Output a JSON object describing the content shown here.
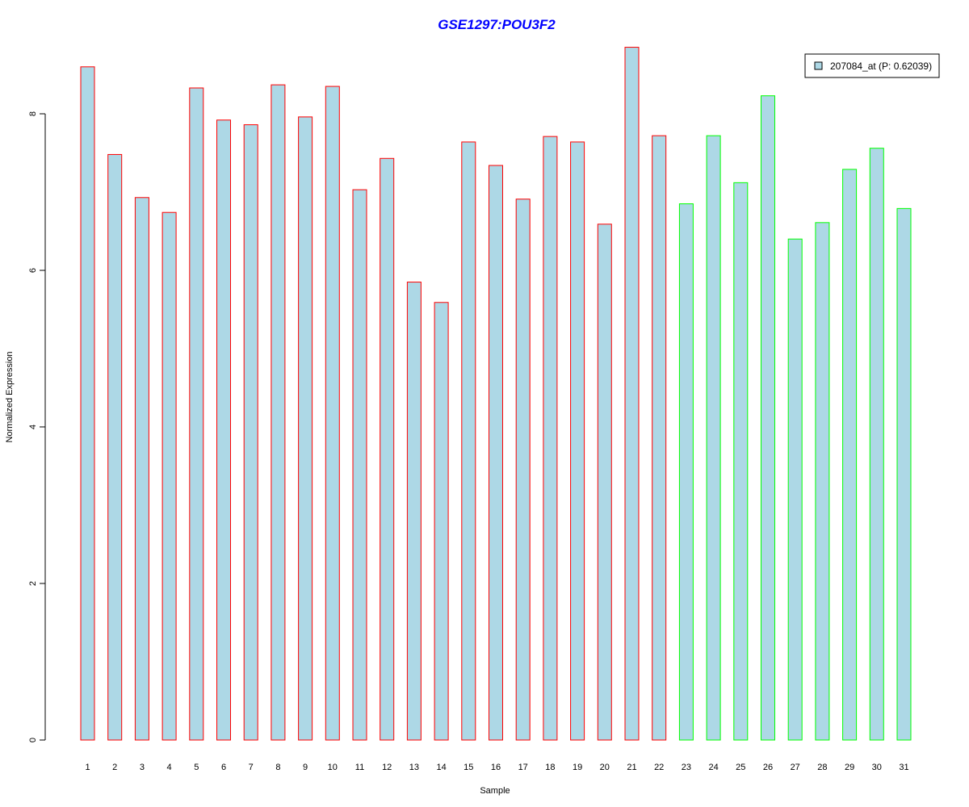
{
  "chart_data": {
    "type": "bar",
    "title": "GSE1297:POU3F2",
    "title_color": "#0000FF",
    "xlabel": "Sample",
    "ylabel": "Normalized Expression",
    "categories": [
      "1",
      "2",
      "3",
      "4",
      "5",
      "6",
      "7",
      "8",
      "9",
      "10",
      "11",
      "12",
      "13",
      "14",
      "15",
      "16",
      "17",
      "18",
      "19",
      "20",
      "21",
      "22",
      "23",
      "24",
      "25",
      "26",
      "27",
      "28",
      "29",
      "30",
      "31"
    ],
    "values": [
      8.6,
      7.48,
      6.93,
      6.74,
      8.33,
      7.92,
      7.86,
      8.37,
      7.96,
      8.35,
      7.03,
      7.43,
      5.85,
      5.59,
      7.64,
      7.34,
      6.91,
      7.71,
      7.64,
      6.59,
      8.85,
      7.72,
      6.85,
      7.72,
      7.12,
      8.23,
      6.4,
      6.61,
      7.29,
      7.56,
      6.79
    ],
    "bar_fill": "#ADD8E6",
    "group_border_colors": [
      "#FF0000",
      "#FF0000",
      "#FF0000",
      "#FF0000",
      "#FF0000",
      "#FF0000",
      "#FF0000",
      "#FF0000",
      "#FF0000",
      "#FF0000",
      "#FF0000",
      "#FF0000",
      "#FF0000",
      "#FF0000",
      "#FF0000",
      "#FF0000",
      "#FF0000",
      "#FF0000",
      "#FF0000",
      "#FF0000",
      "#FF0000",
      "#FF0000",
      "#00FF00",
      "#00FF00",
      "#00FF00",
      "#00FF00",
      "#00FF00",
      "#00FF00",
      "#00FF00",
      "#00FF00",
      "#00FF00"
    ],
    "ylim": [
      0,
      9
    ],
    "yticks": [
      "0",
      "2",
      "4",
      "6",
      "8"
    ],
    "legend": {
      "label": "207084_at (P: 0.62039)",
      "position": "top-right"
    },
    "grid": false
  }
}
